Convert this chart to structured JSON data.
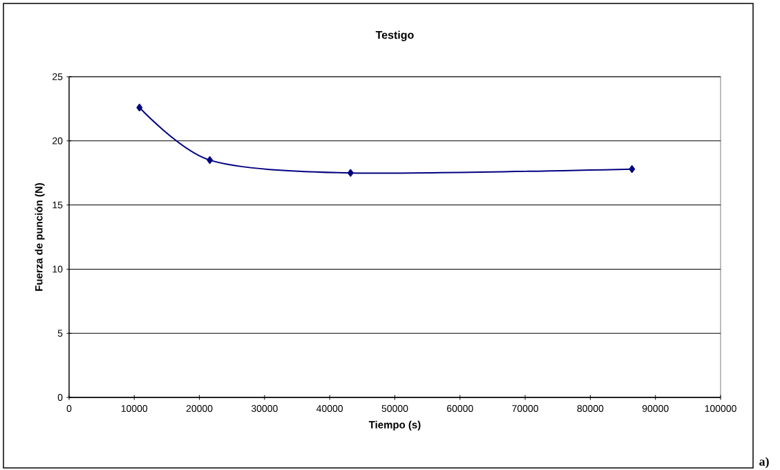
{
  "chart_data": {
    "type": "line",
    "title": "Testigo",
    "xlabel": "Tiempo (s)",
    "ylabel": "Fuerza de punción (N)",
    "x": [
      10800,
      21600,
      43200,
      86400
    ],
    "series": [
      {
        "color": "#000080",
        "values": [
          22.6,
          18.5,
          17.5,
          17.8
        ]
      }
    ],
    "xlim": [
      0,
      100000
    ],
    "xticks": [
      0,
      10000,
      20000,
      30000,
      40000,
      50000,
      60000,
      70000,
      80000,
      90000,
      100000
    ],
    "ylim": [
      0,
      25
    ],
    "yticks": [
      0,
      5,
      10,
      15,
      20,
      25
    ],
    "grid": "y",
    "marker": "diamond",
    "line_style": "solid",
    "annotations": [
      "a)"
    ]
  }
}
